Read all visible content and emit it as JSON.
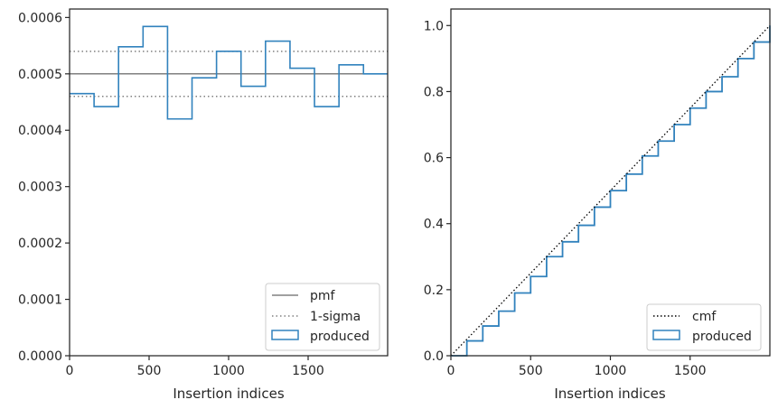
{
  "chart_data": [
    {
      "type": "step",
      "xlabel": "Insertion indices",
      "ylabel": "",
      "xlim": [
        0,
        2000
      ],
      "ylim": [
        0,
        0.000615
      ],
      "xticks": [
        0,
        500,
        1000,
        1500
      ],
      "yticks": [
        0,
        0.0001,
        0.0002,
        0.0003,
        0.0004,
        0.0005,
        0.0006
      ],
      "ytick_labels": [
        "0.0000",
        "0.0001",
        "0.0002",
        "0.0003",
        "0.0004",
        "0.0005",
        "0.0006"
      ],
      "pmf": 0.0005,
      "sigma_band": [
        0.00046,
        0.00054
      ],
      "bin_edges": [
        0,
        154,
        308,
        462,
        616,
        770,
        924,
        1078,
        1232,
        1386,
        1540,
        1694,
        1848,
        2000
      ],
      "produced": [
        0.000465,
        0.000442,
        0.000548,
        0.000584,
        0.00042,
        0.000493,
        0.00054,
        0.000478,
        0.000558,
        0.00051,
        0.000442,
        0.000516,
        0.0005
      ],
      "legend": {
        "position": "lower-right",
        "entries": [
          "pmf",
          "1-sigma",
          "produced"
        ]
      },
      "grid": false
    },
    {
      "type": "step",
      "xlabel": "Insertion indices",
      "ylabel": "",
      "xlim": [
        0,
        2000
      ],
      "ylim": [
        0,
        1.05
      ],
      "xticks": [
        0,
        500,
        1000,
        1500
      ],
      "yticks": [
        0,
        0.2,
        0.4,
        0.6,
        0.8,
        1.0
      ],
      "ytick_labels": [
        "0.0",
        "0.2",
        "0.4",
        "0.6",
        "0.8",
        "1.0"
      ],
      "cmf": {
        "x": [
          0,
          2000
        ],
        "y": [
          0,
          1.0
        ]
      },
      "produced": {
        "x": [
          0,
          100,
          200,
          300,
          400,
          500,
          600,
          700,
          800,
          900,
          1000,
          1100,
          1200,
          1300,
          1400,
          1500,
          1600,
          1700,
          1800,
          1900,
          2000
        ],
        "y": [
          0,
          0.045,
          0.09,
          0.135,
          0.19,
          0.24,
          0.3,
          0.345,
          0.395,
          0.45,
          0.5,
          0.55,
          0.605,
          0.65,
          0.7,
          0.75,
          0.8,
          0.845,
          0.9,
          0.95,
          1.0
        ]
      },
      "legend": {
        "position": "lower-right",
        "entries": [
          "cmf",
          "produced"
        ]
      },
      "grid": false
    }
  ],
  "colors": {
    "produced": "#3182bd",
    "pmf": "#808080",
    "sigma": "#808080",
    "cmf": "#000000",
    "axis": "#262626"
  }
}
